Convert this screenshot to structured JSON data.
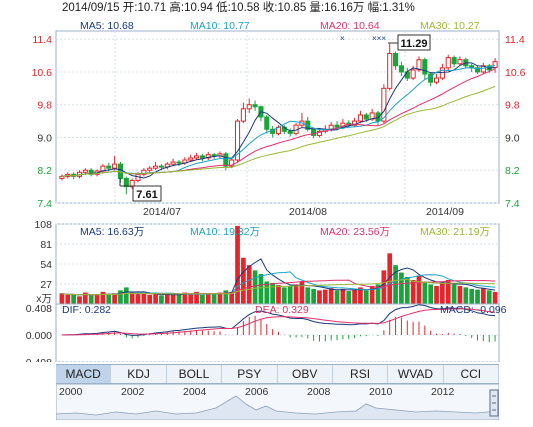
{
  "header": {
    "text": "2014/09/15 开:10.71 高:10.94 低:10.58 收:10.85 量:16.16万 幅:1.31%"
  },
  "price_panel": {
    "ma_labels": [
      {
        "text": "MA5: 10.68",
        "color": "#1a3a7a"
      },
      {
        "text": "MA10: 10.77",
        "color": "#1ba3c6"
      },
      {
        "text": "MA20: 10.64",
        "color": "#e3306b"
      },
      {
        "text": "MA30: 10.27",
        "color": "#9ab836"
      }
    ],
    "y_ticks": [
      "11.4",
      "10.6",
      "9.8",
      "9.0",
      "8.2",
      "7.4"
    ],
    "x_labels": [
      "2014/07",
      "2014/08",
      "2014/09"
    ],
    "high_callout": "11.29",
    "low_callout": "7.61"
  },
  "volume_panel": {
    "ma_labels": [
      {
        "text": "MA5: 16.63万",
        "color": "#1a3a7a"
      },
      {
        "text": "MA10: 19.32万",
        "color": "#1ba3c6"
      },
      {
        "text": "MA20: 23.56万",
        "color": "#e3306b"
      },
      {
        "text": "MA30: 21.19万",
        "color": "#9ab836"
      }
    ],
    "y_ticks": [
      "108",
      "81",
      "54",
      "27",
      "x万"
    ]
  },
  "macd_panel": {
    "labels": [
      {
        "text": "DIF: 0.282",
        "color": "#1a3a7a"
      },
      {
        "text": "DEA: 0.329",
        "color": "#e3306b"
      },
      {
        "text": "MACD: -0.096",
        "color": "#1a3a7a"
      }
    ],
    "y_ticks": [
      "0.408",
      "0.000",
      "-0.408"
    ]
  },
  "tabs": [
    "MACD",
    "KDJ",
    "BOLL",
    "PSY",
    "OBV",
    "RSI",
    "WVAD",
    "CCI"
  ],
  "active_tab": "MACD",
  "timeline": {
    "years": [
      "2000",
      "2002",
      "2004",
      "2006",
      "2008",
      "2010",
      "2012"
    ]
  },
  "chart_data": [
    {
      "type": "candlestick",
      "ylim": [
        7.4,
        11.6
      ],
      "y_ticks": [
        11.4,
        10.6,
        9.8,
        9.0,
        8.2,
        7.4
      ],
      "x_labels": [
        "2014/07",
        "2014/08",
        "2014/09"
      ],
      "candles": [
        [
          8.0,
          8.05,
          7.95,
          8.1
        ],
        [
          8.05,
          8.1,
          8.0,
          8.15
        ],
        [
          8.1,
          8.05,
          7.98,
          8.15
        ],
        [
          8.05,
          8.15,
          8.0,
          8.2
        ],
        [
          8.15,
          8.2,
          8.08,
          8.25
        ],
        [
          8.2,
          8.1,
          8.05,
          8.25
        ],
        [
          8.1,
          8.18,
          8.05,
          8.22
        ],
        [
          8.18,
          8.3,
          8.12,
          8.35
        ],
        [
          8.3,
          8.25,
          8.18,
          8.38
        ],
        [
          8.25,
          8.35,
          8.2,
          8.55
        ],
        [
          8.35,
          8.0,
          7.9,
          8.4
        ],
        [
          8.0,
          7.8,
          7.61,
          8.05
        ],
        [
          7.8,
          7.95,
          7.75,
          8.0
        ],
        [
          7.95,
          8.1,
          7.9,
          8.15
        ],
        [
          8.1,
          8.2,
          8.05,
          8.25
        ],
        [
          8.2,
          8.25,
          8.15,
          8.3
        ],
        [
          8.25,
          8.3,
          8.2,
          8.4
        ],
        [
          8.3,
          8.28,
          8.2,
          8.35
        ],
        [
          8.28,
          8.35,
          8.22,
          8.4
        ],
        [
          8.35,
          8.4,
          8.3,
          8.48
        ],
        [
          8.4,
          8.38,
          8.3,
          8.45
        ],
        [
          8.38,
          8.45,
          8.33,
          8.52
        ],
        [
          8.45,
          8.5,
          8.4,
          8.58
        ],
        [
          8.5,
          8.55,
          8.45,
          8.62
        ],
        [
          8.55,
          8.5,
          8.42,
          8.6
        ],
        [
          8.5,
          8.58,
          8.45,
          8.65
        ],
        [
          8.58,
          8.55,
          8.48,
          8.62
        ],
        [
          8.55,
          8.6,
          8.5,
          8.66
        ],
        [
          8.6,
          8.3,
          8.2,
          8.65
        ],
        [
          8.3,
          8.45,
          8.25,
          8.5
        ],
        [
          8.45,
          9.4,
          8.4,
          9.45
        ],
        [
          9.4,
          9.7,
          9.35,
          9.85
        ],
        [
          9.7,
          9.8,
          9.6,
          9.95
        ],
        [
          9.8,
          9.75,
          9.65,
          9.9
        ],
        [
          9.75,
          9.5,
          9.4,
          9.78
        ],
        [
          9.5,
          9.2,
          9.1,
          9.55
        ],
        [
          9.2,
          9.1,
          9.0,
          9.28
        ],
        [
          9.1,
          9.25,
          9.05,
          9.3
        ],
        [
          9.25,
          9.15,
          9.08,
          9.3
        ],
        [
          9.15,
          9.1,
          9.02,
          9.22
        ],
        [
          9.1,
          9.3,
          9.05,
          9.35
        ],
        [
          9.3,
          9.4,
          9.25,
          9.6
        ],
        [
          9.4,
          9.2,
          9.15,
          9.5
        ],
        [
          9.2,
          9.05,
          8.98,
          9.25
        ],
        [
          9.05,
          9.15,
          9.0,
          9.2
        ],
        [
          9.15,
          9.2,
          9.1,
          9.3
        ],
        [
          9.2,
          9.3,
          9.15,
          9.38
        ],
        [
          9.3,
          9.25,
          9.18,
          9.4
        ],
        [
          9.25,
          9.35,
          9.2,
          9.45
        ],
        [
          9.35,
          9.3,
          9.25,
          9.42
        ],
        [
          9.3,
          9.4,
          9.25,
          9.48
        ],
        [
          9.4,
          9.55,
          9.35,
          9.65
        ],
        [
          9.55,
          9.45,
          9.38,
          9.6
        ],
        [
          9.45,
          9.6,
          9.4,
          9.7
        ],
        [
          9.6,
          9.4,
          9.3,
          9.65
        ],
        [
          9.4,
          10.2,
          9.35,
          10.3
        ],
        [
          10.2,
          11.05,
          10.15,
          11.29
        ],
        [
          11.05,
          10.75,
          10.65,
          11.1
        ],
        [
          10.75,
          10.6,
          10.5,
          10.85
        ],
        [
          10.6,
          10.45,
          10.38,
          10.7
        ],
        [
          10.45,
          10.65,
          10.4,
          10.75
        ],
        [
          10.65,
          10.9,
          10.6,
          10.98
        ],
        [
          10.9,
          10.55,
          10.4,
          10.95
        ],
        [
          10.55,
          10.35,
          10.25,
          10.6
        ],
        [
          10.35,
          10.45,
          10.3,
          10.55
        ],
        [
          10.45,
          10.7,
          10.4,
          10.8
        ],
        [
          10.7,
          10.95,
          10.65,
          11.02
        ],
        [
          10.95,
          10.8,
          10.72,
          11.0
        ],
        [
          10.8,
          10.9,
          10.75,
          10.98
        ],
        [
          10.9,
          10.75,
          10.68,
          10.95
        ],
        [
          10.75,
          10.7,
          10.6,
          10.8
        ],
        [
          10.7,
          10.6,
          10.55,
          10.75
        ],
        [
          10.6,
          10.75,
          10.55,
          10.82
        ],
        [
          10.75,
          10.65,
          10.58,
          10.8
        ],
        [
          10.71,
          10.85,
          10.58,
          10.94
        ]
      ],
      "annotations": [
        {
          "text": "11.29",
          "kind": "high"
        },
        {
          "text": "7.61",
          "kind": "low"
        }
      ]
    },
    {
      "type": "bar",
      "title": "volume",
      "ylim": [
        0,
        108
      ],
      "y_ticks": [
        108,
        81,
        54,
        27
      ],
      "values": [
        14,
        12,
        13,
        10,
        15,
        11,
        13,
        16,
        12,
        14,
        18,
        22,
        15,
        13,
        14,
        12,
        13,
        11,
        14,
        12,
        13,
        15,
        14,
        16,
        12,
        14,
        13,
        15,
        18,
        16,
        105,
        62,
        52,
        45,
        40,
        30,
        28,
        25,
        22,
        24,
        26,
        30,
        22,
        20,
        18,
        19,
        21,
        18,
        20,
        17,
        19,
        22,
        18,
        24,
        26,
        45,
        68,
        52,
        42,
        36,
        32,
        38,
        30,
        26,
        24,
        28,
        32,
        26,
        24,
        22,
        20,
        19,
        21,
        18,
        16
      ]
    },
    {
      "type": "bar",
      "title": "MACD",
      "ylim": [
        -0.408,
        0.408
      ],
      "y_ticks": [
        0.408,
        0.0,
        -0.408
      ]
    }
  ]
}
